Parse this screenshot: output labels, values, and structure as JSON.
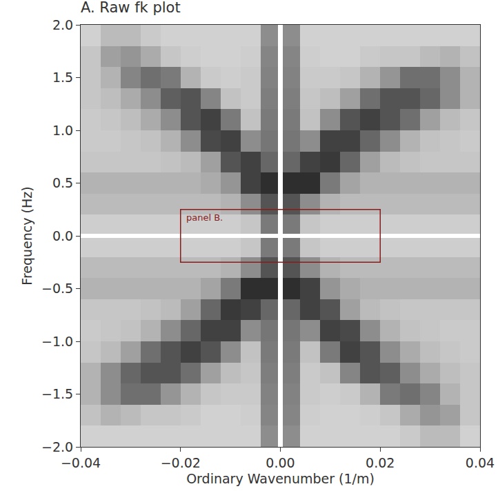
{
  "chart_data": {
    "type": "heatmap",
    "title": "A. Raw fk plot",
    "xlabel": "Ordinary Wavenumber (1/m)",
    "ylabel": "Frequency (Hz)",
    "color": "#2e2e2e",
    "x": [
      -0.04,
      -0.036,
      -0.032,
      -0.028,
      -0.024,
      -0.02,
      -0.016,
      -0.012,
      -0.008,
      -0.004,
      -0.0005,
      0.0005,
      0.004,
      0.008,
      0.012,
      0.016,
      0.02,
      0.024,
      0.028,
      0.032,
      0.036,
      0.04
    ],
    "y": [
      -2,
      -1.8,
      -1.6,
      -1.4,
      -1.2,
      -1,
      -0.8,
      -0.6,
      -0.4,
      -0.2,
      -0.02,
      0.02,
      0.2,
      0.4,
      0.6,
      0.8,
      1,
      1.2,
      1.4,
      1.6,
      1.8,
      2
    ],
    "z": [
      [
        0.12,
        0.12,
        0.12,
        0.12,
        0.12,
        0.12,
        0.12,
        0.12,
        0.12,
        0.3,
        0,
        0.3,
        0.12,
        0.12,
        0.12,
        0.12,
        0.12,
        0.14,
        0.18,
        0.18,
        0.12
      ],
      [
        0.16,
        0.2,
        0.18,
        0.15,
        0.15,
        0.14,
        0.12,
        0.12,
        0.13,
        0.32,
        0,
        0.32,
        0.13,
        0.12,
        0.12,
        0.13,
        0.15,
        0.22,
        0.28,
        0.25,
        0.15
      ],
      [
        0.2,
        0.3,
        0.38,
        0.38,
        0.28,
        0.2,
        0.15,
        0.14,
        0.14,
        0.33,
        0,
        0.33,
        0.14,
        0.13,
        0.14,
        0.2,
        0.35,
        0.38,
        0.32,
        0.2,
        0.15
      ],
      [
        0.2,
        0.3,
        0.4,
        0.45,
        0.45,
        0.38,
        0.25,
        0.17,
        0.15,
        0.34,
        0,
        0.34,
        0.14,
        0.16,
        0.32,
        0.45,
        0.42,
        0.3,
        0.22,
        0.17,
        0.15
      ],
      [
        0.15,
        0.18,
        0.25,
        0.38,
        0.45,
        0.5,
        0.45,
        0.3,
        0.16,
        0.35,
        0,
        0.35,
        0.16,
        0.35,
        0.5,
        0.45,
        0.3,
        0.22,
        0.17,
        0.15,
        0.14
      ],
      [
        0.14,
        0.15,
        0.16,
        0.2,
        0.3,
        0.4,
        0.5,
        0.5,
        0.3,
        0.36,
        0,
        0.36,
        0.3,
        0.5,
        0.48,
        0.3,
        0.2,
        0.16,
        0.15,
        0.14,
        0.14
      ],
      [
        0.15,
        0.15,
        0.15,
        0.16,
        0.18,
        0.25,
        0.4,
        0.52,
        0.5,
        0.4,
        0,
        0.4,
        0.5,
        0.45,
        0.25,
        0.18,
        0.16,
        0.15,
        0.15,
        0.15,
        0.15
      ],
      [
        0.2,
        0.2,
        0.2,
        0.2,
        0.2,
        0.2,
        0.24,
        0.35,
        0.55,
        0.55,
        0,
        0.55,
        0.5,
        0.28,
        0.22,
        0.2,
        0.2,
        0.2,
        0.2,
        0.2,
        0.2
      ],
      [
        0.18,
        0.18,
        0.18,
        0.18,
        0.18,
        0.18,
        0.18,
        0.2,
        0.3,
        0.45,
        0,
        0.45,
        0.3,
        0.2,
        0.18,
        0.18,
        0.18,
        0.18,
        0.18,
        0.18,
        0.18
      ],
      [
        0.13,
        0.13,
        0.13,
        0.13,
        0.13,
        0.13,
        0.13,
        0.13,
        0.15,
        0.35,
        0,
        0.35,
        0.15,
        0.13,
        0.13,
        0.13,
        0.13,
        0.13,
        0.13,
        0.13,
        0.13
      ],
      [
        0,
        0,
        0,
        0,
        0,
        0,
        0,
        0,
        0,
        0,
        0,
        0,
        0,
        0,
        0,
        0,
        0,
        0,
        0,
        0,
        0
      ],
      [
        0.13,
        0.13,
        0.13,
        0.13,
        0.13,
        0.13,
        0.13,
        0.13,
        0.15,
        0.35,
        0,
        0.35,
        0.15,
        0.13,
        0.13,
        0.13,
        0.13,
        0.13,
        0.13,
        0.13,
        0.13
      ],
      [
        0.18,
        0.18,
        0.18,
        0.18,
        0.18,
        0.18,
        0.18,
        0.2,
        0.3,
        0.45,
        0,
        0.45,
        0.3,
        0.2,
        0.18,
        0.18,
        0.18,
        0.18,
        0.18,
        0.18,
        0.18
      ],
      [
        0.2,
        0.2,
        0.2,
        0.2,
        0.2,
        0.2,
        0.22,
        0.28,
        0.5,
        0.55,
        0,
        0.55,
        0.55,
        0.35,
        0.24,
        0.2,
        0.2,
        0.2,
        0.2,
        0.2,
        0.2
      ],
      [
        0.15,
        0.15,
        0.15,
        0.15,
        0.16,
        0.18,
        0.25,
        0.45,
        0.5,
        0.4,
        0,
        0.4,
        0.5,
        0.52,
        0.4,
        0.25,
        0.18,
        0.16,
        0.15,
        0.15,
        0.15
      ],
      [
        0.14,
        0.14,
        0.15,
        0.16,
        0.2,
        0.3,
        0.48,
        0.5,
        0.3,
        0.36,
        0,
        0.36,
        0.3,
        0.5,
        0.5,
        0.4,
        0.3,
        0.2,
        0.16,
        0.15,
        0.14
      ],
      [
        0.14,
        0.15,
        0.17,
        0.22,
        0.3,
        0.45,
        0.5,
        0.35,
        0.16,
        0.35,
        0,
        0.35,
        0.16,
        0.3,
        0.45,
        0.5,
        0.45,
        0.38,
        0.25,
        0.18,
        0.15
      ],
      [
        0.15,
        0.17,
        0.22,
        0.3,
        0.42,
        0.45,
        0.32,
        0.16,
        0.14,
        0.34,
        0,
        0.34,
        0.15,
        0.17,
        0.25,
        0.38,
        0.45,
        0.45,
        0.4,
        0.3,
        0.2
      ],
      [
        0.15,
        0.2,
        0.32,
        0.38,
        0.35,
        0.2,
        0.14,
        0.13,
        0.14,
        0.33,
        0,
        0.33,
        0.14,
        0.14,
        0.15,
        0.2,
        0.28,
        0.38,
        0.38,
        0.3,
        0.2
      ],
      [
        0.15,
        0.25,
        0.28,
        0.22,
        0.15,
        0.13,
        0.12,
        0.12,
        0.13,
        0.32,
        0,
        0.32,
        0.13,
        0.12,
        0.12,
        0.14,
        0.15,
        0.15,
        0.18,
        0.2,
        0.16
      ],
      [
        0.12,
        0.18,
        0.18,
        0.14,
        0.12,
        0.12,
        0.12,
        0.12,
        0.12,
        0.3,
        0,
        0.3,
        0.12,
        0.12,
        0.12,
        0.12,
        0.12,
        0.12,
        0.12,
        0.12,
        0.12
      ]
    ],
    "xlim": [
      -0.04,
      0.04
    ],
    "ylim": [
      -2,
      2
    ],
    "xticks": [
      {
        "value": -0.04,
        "label": "−0.04"
      },
      {
        "value": -0.02,
        "label": "−0.02"
      },
      {
        "value": 0,
        "label": "0.00"
      },
      {
        "value": 0.02,
        "label": "0.02"
      },
      {
        "value": 0.04,
        "label": "0.04"
      }
    ],
    "yticks": [
      {
        "value": -2,
        "label": "−2.0"
      },
      {
        "value": -1.5,
        "label": "−1.5"
      },
      {
        "value": -1,
        "label": "−1.0"
      },
      {
        "value": -0.5,
        "label": "−0.5"
      },
      {
        "value": 0,
        "label": "0.0"
      },
      {
        "value": 0.5,
        "label": "0.5"
      },
      {
        "value": 1,
        "label": "1.0"
      },
      {
        "value": 1.5,
        "label": "1.5"
      },
      {
        "value": 2,
        "label": "2.0"
      }
    ],
    "annotations": [
      {
        "text": "panel B.",
        "x0": -0.02,
        "x1": 0.02,
        "y0": -0.25,
        "y1": 0.25,
        "color": "#8b1a1a"
      }
    ]
  }
}
